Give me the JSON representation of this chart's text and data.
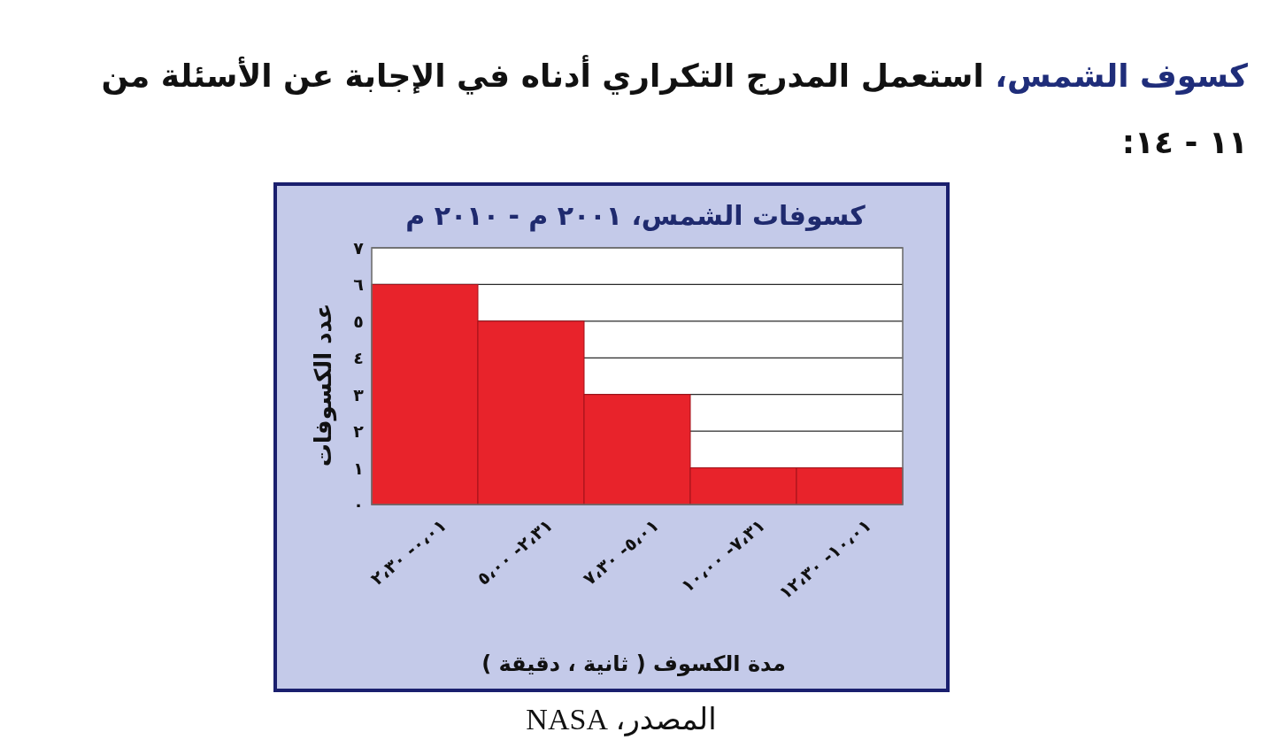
{
  "chart_data": {
    "type": "bar",
    "title": "كسوفات الشمس، ٢٠٠١ م - ٢٠١٠ م",
    "xlabel": "مدة الكسوف ( ثانية ، دقيقة )",
    "ylabel": "عدد الكسوفات",
    "categories": [
      "٠،٠١- ٢،٣٠",
      "٢،٣١- ٥،٠٠",
      "٥،٠١- ٧،٣٠",
      "٧،٣١- ١٠،٠٠",
      "١٠،٠١- ١٢،٣٠"
    ],
    "values": [
      6,
      5,
      3,
      1,
      1
    ],
    "color": "#e8232b",
    "ylim": [
      0,
      7
    ],
    "yticks": [
      {
        "value": 0,
        "label": "٠"
      },
      {
        "value": 1,
        "label": "١"
      },
      {
        "value": 2,
        "label": "٢"
      },
      {
        "value": 3,
        "label": "٣"
      },
      {
        "value": 4,
        "label": "٤"
      },
      {
        "value": 5,
        "label": "٥"
      },
      {
        "value": 6,
        "label": "٦"
      },
      {
        "value": 7,
        "label": "٧"
      }
    ],
    "grid": "y",
    "annotations": [
      "كسوف الشمس،",
      "استعمل المدرج التكراري أدناه في الإجابة عن الأسئلة من ١١ - ١٤:",
      "المصدر، NASA"
    ]
  }
}
